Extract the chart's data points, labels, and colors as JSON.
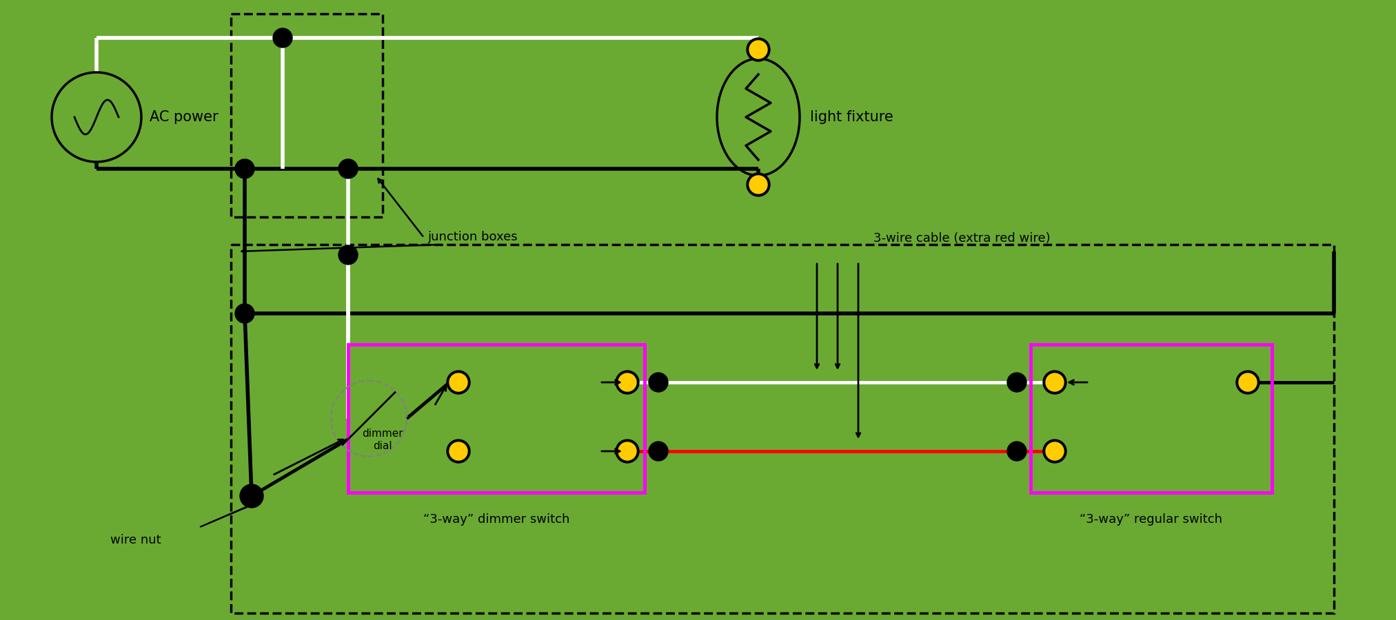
{
  "bg_color": "#6aaa32",
  "bk": "#000000",
  "wh": "#ffffff",
  "rd": "#ff0000",
  "yd": "#ffcc00",
  "mg": "#ff00ff",
  "label_ac": "AC power",
  "label_lf": "light fixture",
  "label_jb": "junction boxes",
  "label_wc": "3-wire cable (extra red wire)",
  "label_wn": "wire nut",
  "label_ds": "“3-way” dimmer switch",
  "label_rs": "“3-way” regular switch",
  "label_dd": "dimmer\ndial"
}
